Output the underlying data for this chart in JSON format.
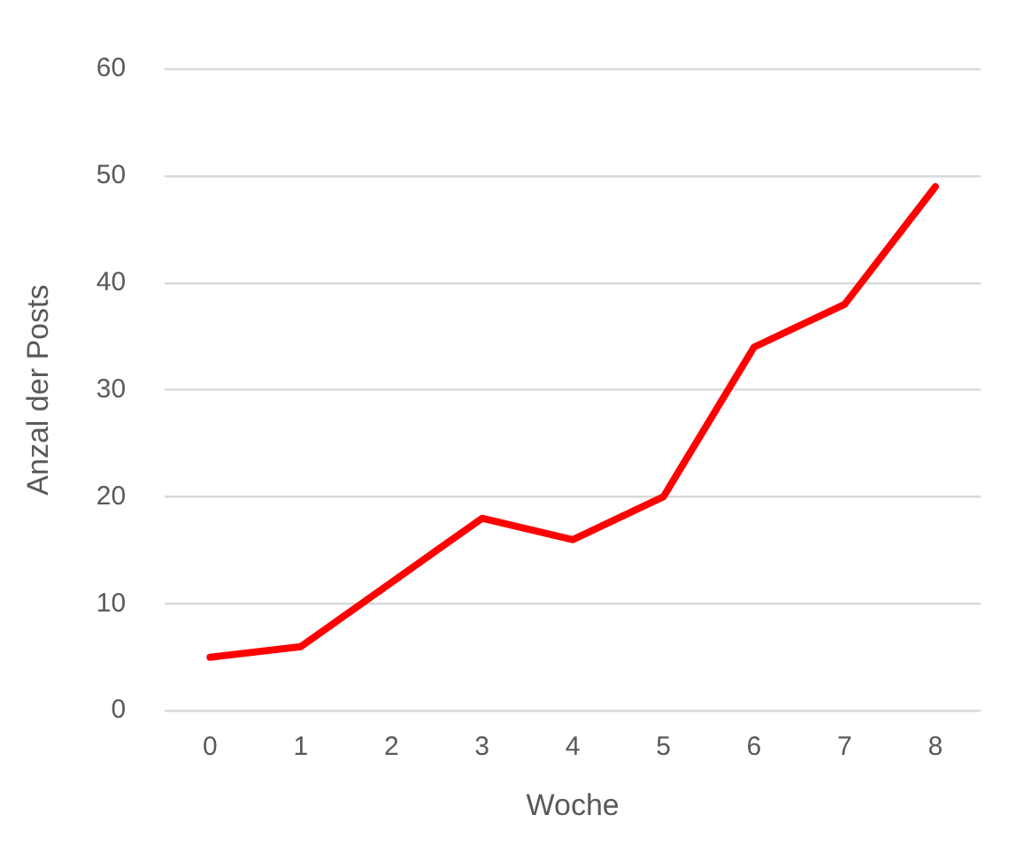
{
  "chart_data": {
    "type": "line",
    "xlabel": "Woche",
    "ylabel": "Anzal der Posts",
    "categories": [
      "0",
      "1",
      "2",
      "3",
      "4",
      "5",
      "6",
      "7",
      "8"
    ],
    "series": [
      {
        "color": "#ff0000",
        "values": [
          5,
          6,
          12,
          18,
          16,
          20,
          34,
          38,
          49
        ]
      }
    ],
    "ylim": [
      0,
      60
    ],
    "yticks": [
      0,
      10,
      20,
      30,
      40,
      50,
      60
    ],
    "grid": "y",
    "legend": false,
    "marker": "none",
    "line_style": "solid"
  }
}
